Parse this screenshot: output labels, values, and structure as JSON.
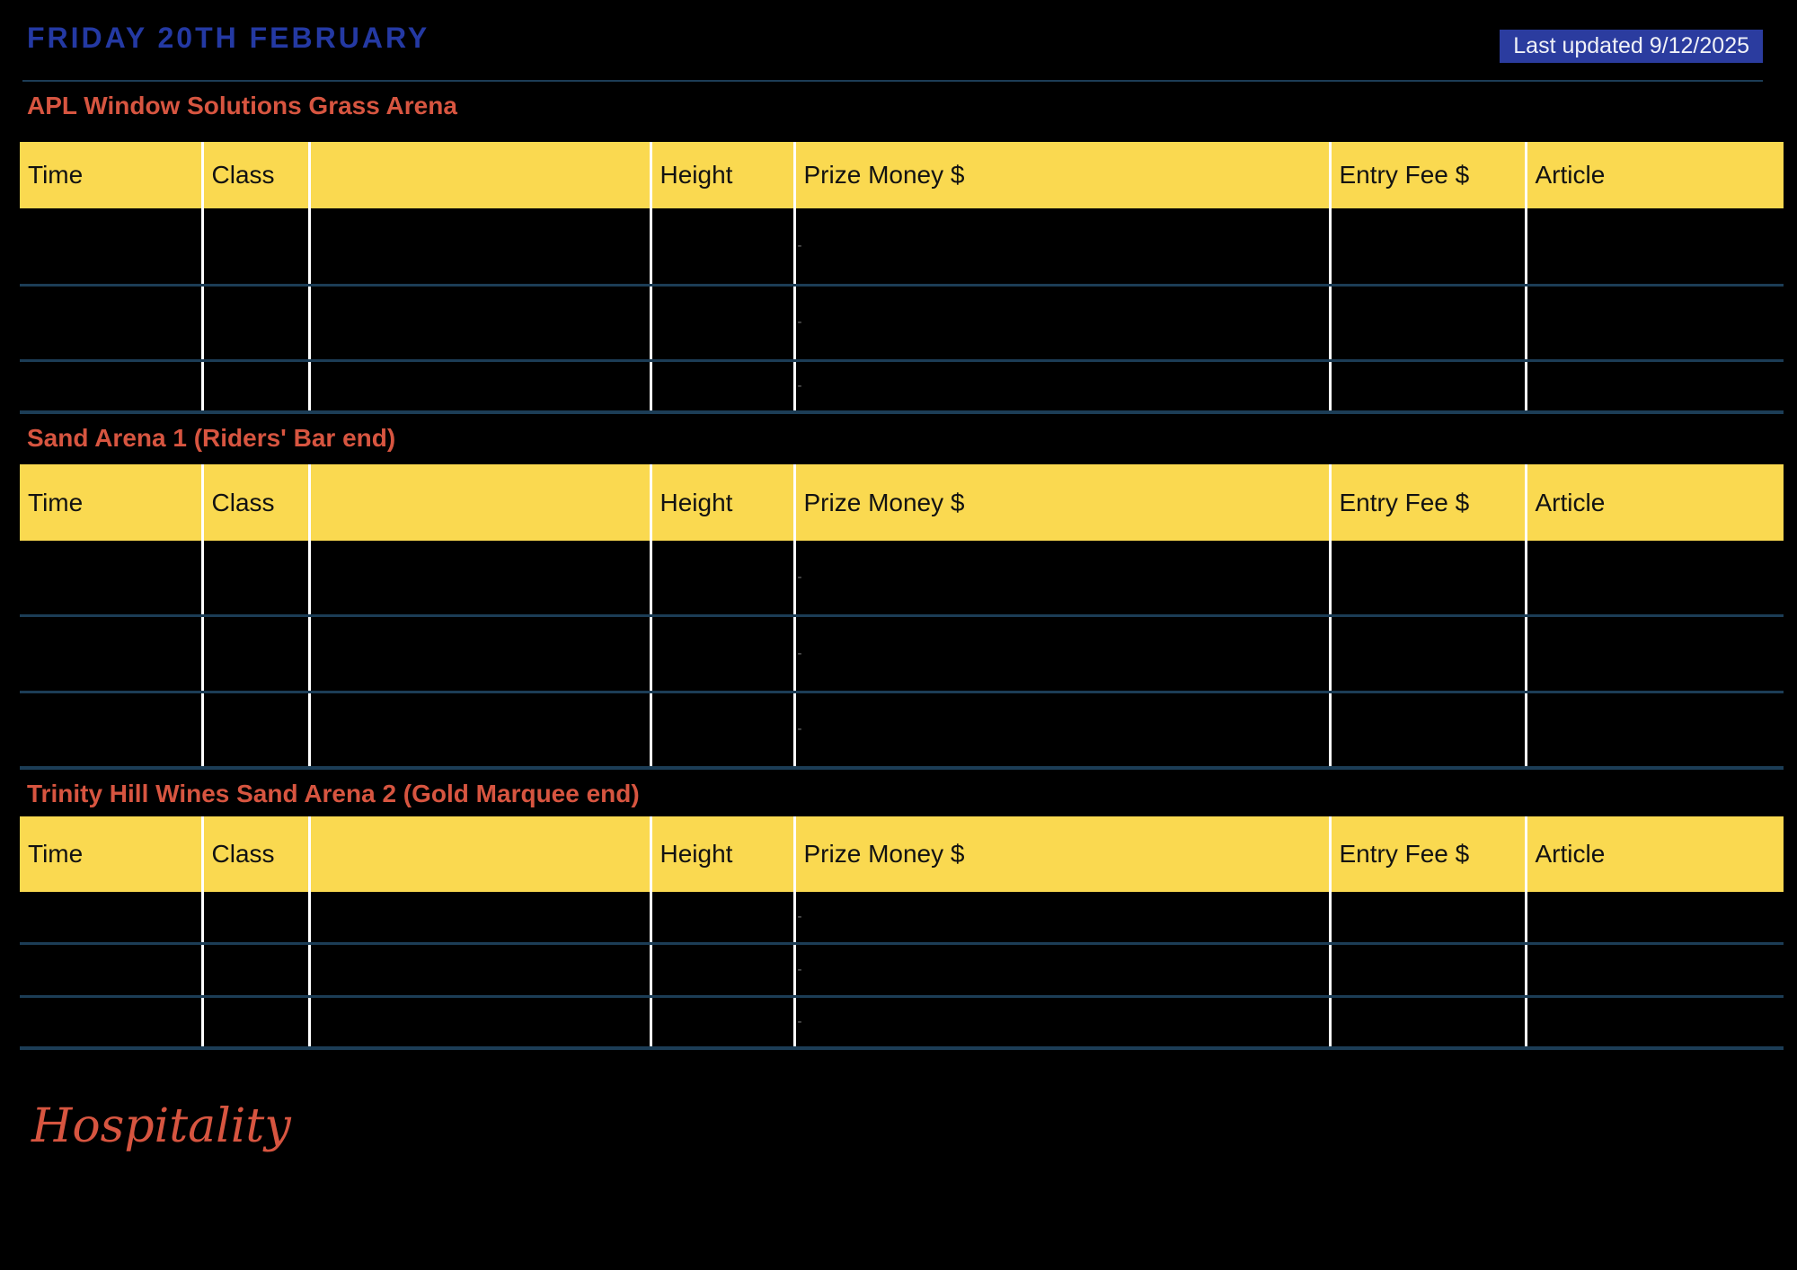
{
  "header": {
    "title": "FRIDAY 20TH FEBRUARY",
    "last_updated": "Last updated 9/12/2025"
  },
  "columns": [
    "Time",
    "Class",
    "",
    "Height",
    "Prize Money $",
    "Entry Fee $",
    "Article"
  ],
  "sections": [
    {
      "title": "APL Window Solutions Grass Arena",
      "rows": [
        [
          "",
          "",
          "",
          "",
          "-",
          "",
          ""
        ],
        [
          "",
          "",
          "",
          "",
          "-",
          "",
          ""
        ],
        [
          "",
          "",
          "",
          "",
          "-",
          "",
          ""
        ]
      ]
    },
    {
      "title": "Sand Arena 1 (Riders' Bar end)",
      "rows": [
        [
          "",
          "",
          "",
          "",
          "-",
          "",
          ""
        ],
        [
          "",
          "",
          "",
          "",
          "-",
          "",
          ""
        ],
        [
          "",
          "",
          "",
          "",
          "-",
          "",
          ""
        ]
      ]
    },
    {
      "title": "Trinity Hill Wines Sand Arena 2 (Gold Marquee end)",
      "rows": [
        [
          "",
          "",
          "",
          "",
          "-",
          "",
          ""
        ],
        [
          "",
          "",
          "",
          "",
          "-",
          "",
          ""
        ],
        [
          "",
          "",
          "",
          "",
          "-",
          "",
          ""
        ]
      ]
    }
  ],
  "footer": {
    "hospitality": "Hospitality"
  },
  "colors": {
    "background": "#000000",
    "title_blue": "#2439A3",
    "badge_blue": "#2B3C9F",
    "section_red": "#D75540",
    "header_yellow": "#FAD950",
    "grid_line_blue": "#1C3D56",
    "separator_white": "#FFFFFF",
    "placeholder_gray": "#707070"
  }
}
